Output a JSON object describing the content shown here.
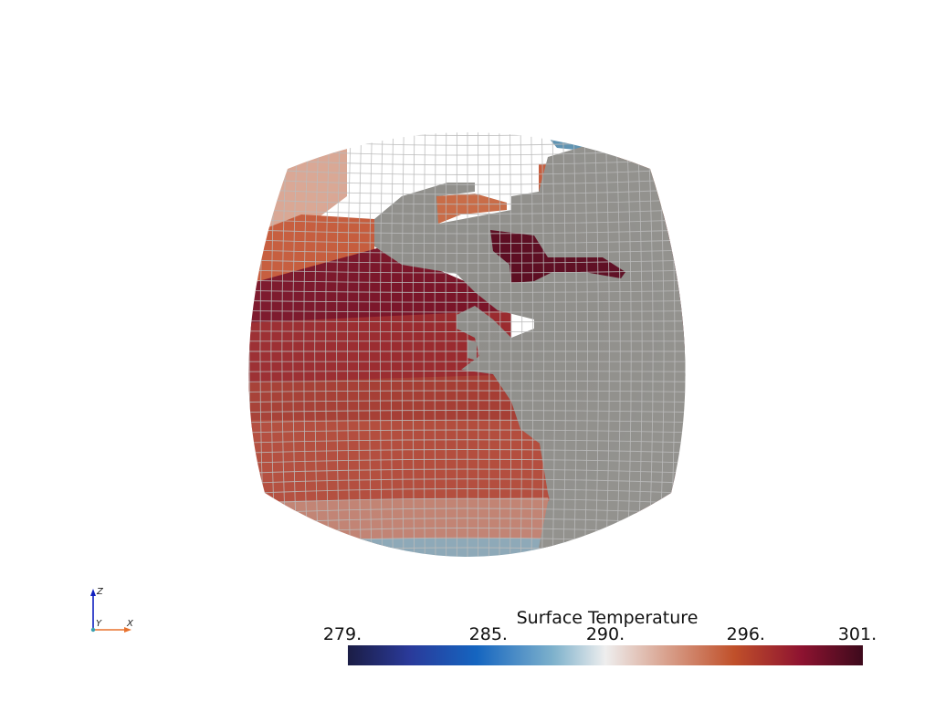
{
  "colorbar": {
    "title": "Surface Temperature",
    "ticks": [
      "279.",
      "285.",
      "290.",
      "296.",
      "301."
    ],
    "tick_values": [
      279,
      285,
      290,
      296,
      301
    ],
    "range": [
      279,
      301
    ],
    "colormap": [
      {
        "stop": 0.0,
        "color": "#1b1d45"
      },
      {
        "stop": 0.12,
        "color": "#2a3a9a"
      },
      {
        "stop": 0.25,
        "color": "#1565c0"
      },
      {
        "stop": 0.4,
        "color": "#7fb2cc"
      },
      {
        "stop": 0.5,
        "color": "#eeeeee"
      },
      {
        "stop": 0.62,
        "color": "#d8a08c"
      },
      {
        "stop": 0.75,
        "color": "#c0502a"
      },
      {
        "stop": 0.88,
        "color": "#8e1330"
      },
      {
        "stop": 1.0,
        "color": "#3d0a1c"
      }
    ]
  },
  "axes": {
    "x_label": "X",
    "y_label": "Y",
    "z_label": "Z",
    "x_color": "#e8722e",
    "z_color": "#1020c0"
  },
  "colors": {
    "land": "#8f8e8a",
    "grid_line": "#b8b8b8",
    "ocean_warm": "#7a1428",
    "ocean_hot": "#4a0a1c",
    "ocean_mild": "#c55a3a",
    "ocean_cool": "#d8a592",
    "ocean_cold": "#5a90b0"
  }
}
